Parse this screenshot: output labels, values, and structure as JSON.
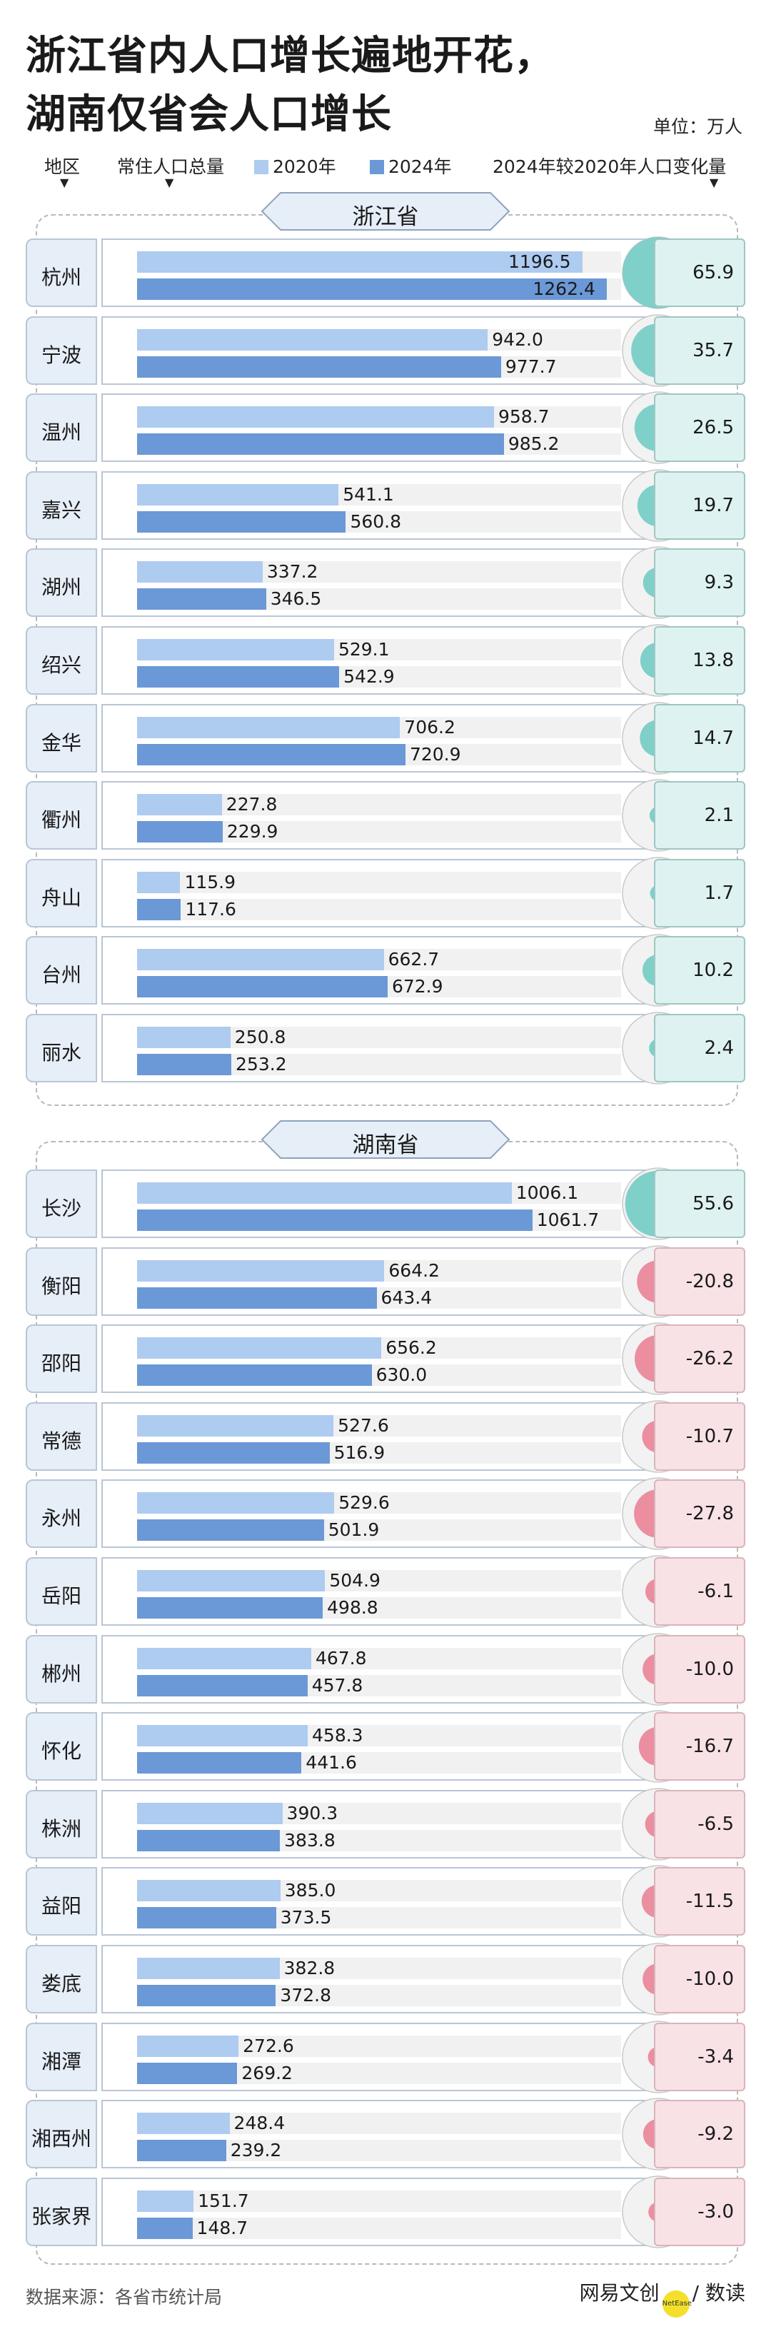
{
  "title_lines": [
    "浙江省内人口增长遍地开花，",
    "湖南仅省会人口增长"
  ],
  "unit": "单位：万人",
  "header": {
    "region": "地区",
    "total": "常住人口总量",
    "legend_2020": "2020年",
    "legend_2024": "2024年",
    "change": "2024年较2020年人口变化量",
    "arrow": "▼"
  },
  "colors": {
    "y2020": "#aecbf0",
    "y2024": "#6b98d6",
    "pos": "#7fd0c9",
    "neg": "#eb8ea0",
    "circle_bg": "#f2f2f2"
  },
  "chart_data": {
    "type": "bar",
    "title": "浙江省内人口增长遍地开花，湖南仅省会人口增长",
    "unit": "万人",
    "xlim": [
      0,
      1300
    ],
    "series_names": [
      "2020年",
      "2024年",
      "2024年较2020年人口变化量"
    ],
    "groups": [
      {
        "name": "浙江省",
        "rows": [
          {
            "city": "杭州",
            "v2020": "1196.5",
            "v2024": "1262.4",
            "change": "65.9"
          },
          {
            "city": "宁波",
            "v2020": "942.0",
            "v2024": "977.7",
            "change": "35.7"
          },
          {
            "city": "温州",
            "v2020": "958.7",
            "v2024": "985.2",
            "change": "26.5"
          },
          {
            "city": "嘉兴",
            "v2020": "541.1",
            "v2024": "560.8",
            "change": "19.7"
          },
          {
            "city": "湖州",
            "v2020": "337.2",
            "v2024": "346.5",
            "change": "9.3"
          },
          {
            "city": "绍兴",
            "v2020": "529.1",
            "v2024": "542.9",
            "change": "13.8"
          },
          {
            "city": "金华",
            "v2020": "706.2",
            "v2024": "720.9",
            "change": "14.7"
          },
          {
            "city": "衢州",
            "v2020": "227.8",
            "v2024": "229.9",
            "change": "2.1"
          },
          {
            "city": "舟山",
            "v2020": "115.9",
            "v2024": "117.6",
            "change": "1.7"
          },
          {
            "city": "台州",
            "v2020": "662.7",
            "v2024": "672.9",
            "change": "10.2"
          },
          {
            "city": "丽水",
            "v2020": "250.8",
            "v2024": "253.2",
            "change": "2.4"
          }
        ]
      },
      {
        "name": "湖南省",
        "rows": [
          {
            "city": "长沙",
            "v2020": "1006.1",
            "v2024": "1061.7",
            "change": "55.6"
          },
          {
            "city": "衡阳",
            "v2020": "664.2",
            "v2024": "643.4",
            "change": "-20.8"
          },
          {
            "city": "邵阳",
            "v2020": "656.2",
            "v2024": "630.0",
            "change": "-26.2"
          },
          {
            "city": "常德",
            "v2020": "527.6",
            "v2024": "516.9",
            "change": "-10.7"
          },
          {
            "city": "永州",
            "v2020": "529.6",
            "v2024": "501.9",
            "change": "-27.8"
          },
          {
            "city": "岳阳",
            "v2020": "504.9",
            "v2024": "498.8",
            "change": "-6.1"
          },
          {
            "city": "郴州",
            "v2020": "467.8",
            "v2024": "457.8",
            "change": "-10.0"
          },
          {
            "city": "怀化",
            "v2020": "458.3",
            "v2024": "441.6",
            "change": "-16.7"
          },
          {
            "city": "株洲",
            "v2020": "390.3",
            "v2024": "383.8",
            "change": "-6.5"
          },
          {
            "city": "益阳",
            "v2020": "385.0",
            "v2024": "373.5",
            "change": "-11.5"
          },
          {
            "city": "娄底",
            "v2020": "382.8",
            "v2024": "372.8",
            "change": "-10.0"
          },
          {
            "city": "湘潭",
            "v2020": "272.6",
            "v2024": "269.2",
            "change": "-3.4"
          },
          {
            "city": "湘西州",
            "v2020": "248.4",
            "v2024": "239.2",
            "change": "-9.2"
          },
          {
            "city": "张家界",
            "v2020": "151.7",
            "v2024": "148.7",
            "change": "-3.0"
          }
        ]
      }
    ]
  },
  "footer": {
    "source": "数据来源：各省市统计局",
    "brand": "网易文创",
    "brand_dot": "NetEase",
    "brand_suffix": "/ 数读"
  }
}
